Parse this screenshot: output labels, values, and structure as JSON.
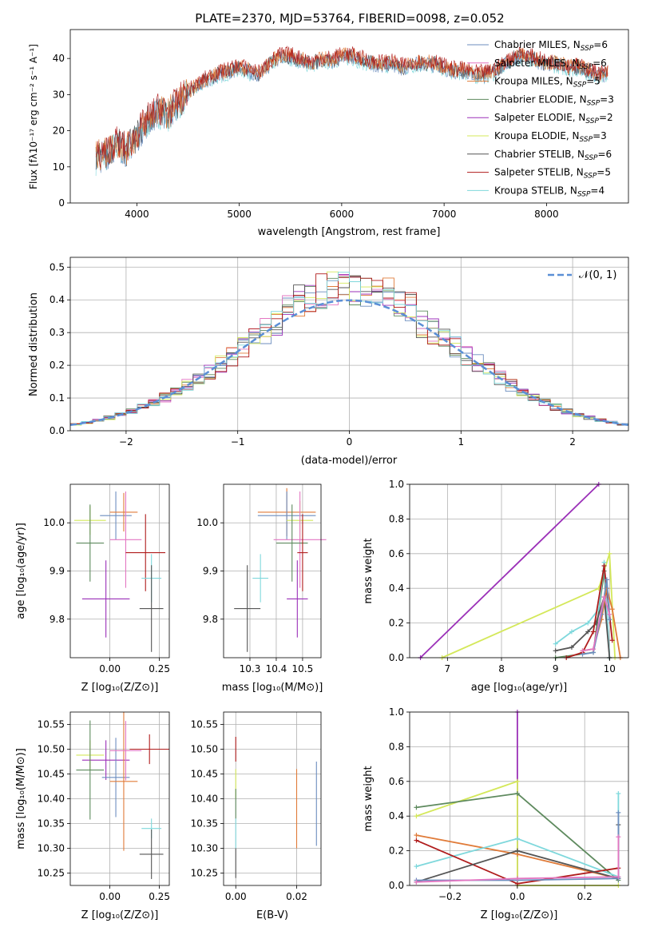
{
  "figure_title": "PLATE=2370, MJD=53764, FIBERID=0098, z=0.052",
  "colors": {
    "chabrier_miles": "#6c8ebf",
    "salpeter_miles": "#e377c2",
    "kroupa_miles": "#e07b39",
    "chabrier_elodie": "#5e8a5e",
    "salpeter_elodie": "#9b30b8",
    "kroupa_elodie": "#d4e85a",
    "chabrier_stelib": "#555555",
    "salpeter_stelib": "#b01c1c",
    "kroupa_stelib": "#7fd8dc",
    "normal_curve": "#5b8fd6"
  },
  "legend_models": [
    {
      "label": "Chabrier MILES, N",
      "sub": "SSP",
      "suffix": "=6",
      "key": "chabrier_miles"
    },
    {
      "label": "Salpeter MILES, N",
      "sub": "SSP",
      "suffix": "=6",
      "key": "salpeter_miles"
    },
    {
      "label": "Kroupa MILES, N",
      "sub": "SSP",
      "suffix": "=5",
      "key": "kroupa_miles"
    },
    {
      "label": "Chabrier ELODIE, N",
      "sub": "SSP",
      "suffix": "=3",
      "key": "chabrier_elodie"
    },
    {
      "label": "Salpeter ELODIE, N",
      "sub": "SSP",
      "suffix": "=2",
      "key": "salpeter_elodie"
    },
    {
      "label": "Kroupa ELODIE, N",
      "sub": "SSP",
      "suffix": "=3",
      "key": "kroupa_elodie"
    },
    {
      "label": "Chabrier STELIB, N",
      "sub": "SSP",
      "suffix": "=6",
      "key": "chabrier_stelib"
    },
    {
      "label": "Salpeter STELIB, N",
      "sub": "SSP",
      "suffix": "=5",
      "key": "salpeter_stelib"
    },
    {
      "label": "Kroupa STELIB, N",
      "sub": "SSP",
      "suffix": "=4",
      "key": "kroupa_stelib"
    }
  ],
  "chart_data": [
    {
      "id": "spectrum",
      "type": "line",
      "xlabel": "wavelength [Angstrom, rest frame]",
      "ylabel": "Flux [fλ10⁻¹⁷ erg cm⁻² s⁻¹ A⁻¹]",
      "xlim": [
        3350,
        8800
      ],
      "ylim": [
        0,
        48
      ],
      "xticks": [
        4000,
        5000,
        6000,
        7000,
        8000
      ],
      "yticks": [
        0,
        10,
        20,
        30,
        40
      ],
      "x": [
        3600,
        3700,
        3800,
        3900,
        4000,
        4100,
        4200,
        4300,
        4400,
        4500,
        4600,
        4700,
        4800,
        4900,
        5000,
        5100,
        5200,
        5300,
        5400,
        5500,
        5600,
        5700,
        5800,
        5900,
        6000,
        6100,
        6200,
        6300,
        6400,
        6500,
        6600,
        6700,
        6800,
        6900,
        7000,
        7100,
        7200,
        7300,
        7400,
        7500,
        7600,
        7700,
        7800,
        7900,
        8000,
        8100,
        8200,
        8300,
        8400,
        8500,
        8600
      ],
      "flux": [
        12,
        13,
        16,
        14,
        18,
        22,
        25,
        24,
        27,
        30,
        32,
        34,
        35,
        36,
        37,
        36,
        35,
        38,
        40,
        40,
        39,
        38,
        39,
        39,
        40,
        40,
        39,
        38,
        38,
        38,
        37,
        38,
        38,
        38,
        37,
        36,
        36,
        35,
        35,
        36,
        38,
        40,
        40,
        39,
        38,
        38,
        37,
        37,
        36,
        35,
        35
      ],
      "legend": "upper right"
    },
    {
      "id": "residuals",
      "type": "histogram",
      "xlabel": "(data-model)/error",
      "ylabel": "Normed distribution",
      "xlim": [
        -2.5,
        2.5
      ],
      "ylim": [
        0,
        0.53
      ],
      "xticks": [
        -2,
        -1,
        0,
        1,
        2
      ],
      "xtick_labels": [
        "−2",
        "−1",
        "0",
        "1",
        "2"
      ],
      "yticks": [
        0.0,
        0.1,
        0.2,
        0.3,
        0.4,
        0.5
      ],
      "ytick_labels": [
        "0.0",
        "0.1",
        "0.2",
        "0.3",
        "0.4",
        "0.5"
      ],
      "bin_width": 0.1,
      "bin_start": -2.5,
      "reference_label": "𝒩(0, 1)",
      "legend": "upper right",
      "grid": true
    },
    {
      "id": "age_vs_Z",
      "type": "scatter",
      "xlabel": "Z [log₁₀(Z/Z⊙)]",
      "ylabel": "age  [log₁₀(age/yr)]",
      "xlim": [
        -0.2,
        0.3
      ],
      "ylim": [
        9.72,
        10.08
      ],
      "xticks": [
        0.0,
        0.25
      ],
      "xtick_labels": [
        "0.00",
        "0.25"
      ],
      "yticks": [
        9.8,
        9.9,
        10.0
      ],
      "ytick_labels": [
        "9.8",
        "9.9",
        "10.0"
      ],
      "points": [
        {
          "key": "kroupa_elodie",
          "x": -0.1,
          "y": 10.005,
          "xerr": 0.08,
          "yerr": 0.03
        },
        {
          "key": "chabrier_elodie",
          "x": -0.1,
          "y": 9.958,
          "xerr": 0.07,
          "yerr": 0.08
        },
        {
          "key": "salpeter_elodie",
          "x": -0.02,
          "y": 9.842,
          "xerr": 0.12,
          "yerr": 0.08
        },
        {
          "key": "chabrier_miles",
          "x": 0.03,
          "y": 10.015,
          "xerr": 0.08,
          "yerr": 0.05
        },
        {
          "key": "kroupa_miles",
          "x": 0.07,
          "y": 10.022,
          "xerr": 0.07,
          "yerr": 0.04
        },
        {
          "key": "salpeter_miles",
          "x": 0.08,
          "y": 9.965,
          "xerr": 0.08,
          "yerr": 0.1
        },
        {
          "key": "salpeter_stelib",
          "x": 0.18,
          "y": 9.938,
          "xerr": 0.1,
          "yerr": 0.08
        },
        {
          "key": "kroupa_stelib",
          "x": 0.21,
          "y": 9.885,
          "xerr": 0.05,
          "yerr": 0.05
        },
        {
          "key": "chabrier_stelib",
          "x": 0.21,
          "y": 9.822,
          "xerr": 0.06,
          "yerr": 0.09
        }
      ]
    },
    {
      "id": "age_vs_mass",
      "type": "scatter",
      "xlabel": "mass [log₁₀(M/M⊙)]",
      "ylabel": "",
      "xlim": [
        10.2,
        10.57
      ],
      "ylim": [
        9.72,
        10.08
      ],
      "xticks": [
        10.3,
        10.4,
        10.5
      ],
      "xtick_labels": [
        "10.3",
        "10.4",
        "10.5"
      ],
      "yticks": [
        9.8,
        9.9,
        10.0
      ],
      "ytick_labels": [
        "9.8",
        "9.9",
        "10.0"
      ],
      "points": [
        {
          "key": "kroupa_miles",
          "x": 10.44,
          "y": 10.022,
          "xerr": 0.11,
          "yerr": 0.05
        },
        {
          "key": "chabrier_miles",
          "x": 10.44,
          "y": 10.015,
          "xerr": 0.11,
          "yerr": 0.05
        },
        {
          "key": "kroupa_elodie",
          "x": 10.49,
          "y": 10.005,
          "xerr": 0.05,
          "yerr": 0.04
        },
        {
          "key": "salpeter_miles",
          "x": 10.49,
          "y": 9.965,
          "xerr": 0.1,
          "yerr": 0.1
        },
        {
          "key": "chabrier_elodie",
          "x": 10.46,
          "y": 9.958,
          "xerr": 0.06,
          "yerr": 0.08
        },
        {
          "key": "salpeter_stelib",
          "x": 10.5,
          "y": 9.938,
          "xerr": 0.02,
          "yerr": 0.08
        },
        {
          "key": "kroupa_stelib",
          "x": 10.34,
          "y": 9.885,
          "xerr": 0.03,
          "yerr": 0.05
        },
        {
          "key": "salpeter_elodie",
          "x": 10.48,
          "y": 9.842,
          "xerr": 0.04,
          "yerr": 0.08
        },
        {
          "key": "chabrier_stelib",
          "x": 10.29,
          "y": 9.822,
          "xerr": 0.05,
          "yerr": 0.09
        }
      ]
    },
    {
      "id": "weight_vs_age",
      "type": "line",
      "xlabel": "age  [log₁₀(age/yr)]",
      "ylabel": "mass weight",
      "xlim": [
        6.3,
        10.35
      ],
      "ylim": [
        0,
        1
      ],
      "xticks": [
        7,
        8,
        9,
        10
      ],
      "xtick_labels": [
        "7",
        "8",
        "9",
        "10"
      ],
      "yticks": [
        0.0,
        0.2,
        0.4,
        0.6,
        0.8,
        1.0
      ],
      "ytick_labels": [
        "0.0",
        "0.2",
        "0.4",
        "0.6",
        "0.8",
        "1.0"
      ],
      "grid": true,
      "series": [
        {
          "key": "salpeter_elodie",
          "x": [
            6.5,
            9.8
          ],
          "y": [
            0.0,
            1.0
          ]
        },
        {
          "key": "kroupa_elodie",
          "x": [
            6.9,
            9.8,
            10.0,
            10.1
          ],
          "y": [
            0.0,
            0.4,
            0.6,
            0.0
          ]
        },
        {
          "key": "chabrier_elodie",
          "x": [
            9.0,
            9.7,
            9.9,
            10.0
          ],
          "y": [
            0.0,
            0.03,
            0.5,
            0.0
          ]
        },
        {
          "key": "kroupa_stelib",
          "x": [
            9.0,
            9.3,
            9.6,
            9.8,
            9.9,
            10.0
          ],
          "y": [
            0.08,
            0.15,
            0.2,
            0.28,
            0.55,
            0.0
          ]
        },
        {
          "key": "chabrier_stelib",
          "x": [
            9.0,
            9.3,
            9.6,
            9.75,
            9.9,
            10.0
          ],
          "y": [
            0.04,
            0.06,
            0.15,
            0.2,
            0.35,
            0.0
          ]
        },
        {
          "key": "salpeter_stelib",
          "x": [
            9.2,
            9.5,
            9.7,
            9.9,
            10.05
          ],
          "y": [
            0.0,
            0.03,
            0.15,
            0.53,
            0.1
          ]
        },
        {
          "key": "kroupa_miles",
          "x": [
            9.5,
            9.7,
            9.85,
            9.95,
            10.05,
            10.2
          ],
          "y": [
            0.04,
            0.05,
            0.22,
            0.4,
            0.28,
            0.0
          ]
        },
        {
          "key": "chabrier_miles",
          "x": [
            9.5,
            9.7,
            9.85,
            9.95,
            10.0
          ],
          "y": [
            0.02,
            0.03,
            0.25,
            0.45,
            0.22
          ]
        },
        {
          "key": "salpeter_miles",
          "x": [
            9.5,
            9.7,
            9.9,
            10.0
          ],
          "y": [
            0.04,
            0.05,
            0.35,
            0.25
          ]
        }
      ]
    },
    {
      "id": "mass_vs_Z",
      "type": "scatter",
      "xlabel": "Z [log₁₀(Z/Z⊙)]",
      "ylabel": "mass [log₁₀(M/M⊙)]",
      "xlim": [
        -0.2,
        0.3
      ],
      "ylim": [
        10.225,
        10.575
      ],
      "xticks": [
        0.0,
        0.25
      ],
      "xtick_labels": [
        "0.00",
        "0.25"
      ],
      "yticks": [
        10.25,
        10.3,
        10.35,
        10.4,
        10.45,
        10.5,
        10.55
      ],
      "ytick_labels": [
        "10.25",
        "10.30",
        "10.35",
        "10.40",
        "10.45",
        "10.50",
        "10.55"
      ],
      "points": [
        {
          "key": "kroupa_elodie",
          "x": -0.1,
          "y": 10.488,
          "xerr": 0.07,
          "yerr": 0.03
        },
        {
          "key": "salpeter_elodie",
          "x": -0.02,
          "y": 10.478,
          "xerr": 0.12,
          "yerr": 0.04
        },
        {
          "key": "chabrier_elodie",
          "x": -0.1,
          "y": 10.458,
          "xerr": 0.07,
          "yerr": 0.1
        },
        {
          "key": "chabrier_miles",
          "x": 0.03,
          "y": 10.443,
          "xerr": 0.07,
          "yerr": 0.08
        },
        {
          "key": "kroupa_miles",
          "x": 0.07,
          "y": 10.435,
          "xerr": 0.07,
          "yerr": 0.14
        },
        {
          "key": "salpeter_miles",
          "x": 0.08,
          "y": 10.497,
          "xerr": 0.08,
          "yerr": 0.06
        },
        {
          "key": "salpeter_stelib",
          "x": 0.2,
          "y": 10.5,
          "xerr": 0.1,
          "yerr": 0.03
        },
        {
          "key": "kroupa_stelib",
          "x": 0.21,
          "y": 10.34,
          "xerr": 0.05,
          "yerr": 0.02
        },
        {
          "key": "chabrier_stelib",
          "x": 0.21,
          "y": 10.288,
          "xerr": 0.06,
          "yerr": 0.05
        }
      ]
    },
    {
      "id": "mass_vs_ebv",
      "type": "scatter",
      "xlabel": "E(B-V)",
      "ylabel": "",
      "xlim": [
        -0.004,
        0.028
      ],
      "ylim": [
        10.225,
        10.575
      ],
      "xticks": [
        0.0,
        0.02
      ],
      "xtick_labels": [
        "0.00",
        "0.02"
      ],
      "yticks": [
        10.25,
        10.3,
        10.35,
        10.4,
        10.45,
        10.5,
        10.55
      ],
      "ytick_labels": [
        "10.25",
        "10.30",
        "10.35",
        "10.40",
        "10.45",
        "10.50",
        "10.55"
      ],
      "points": [
        {
          "key": "salpeter_stelib",
          "x": 0.0,
          "y": 10.5,
          "xerr": 0.0,
          "yerr": 0.025
        },
        {
          "key": "kroupa_elodie",
          "x": 0.0,
          "y": 10.43,
          "xerr": 0.0,
          "yerr": 0.03
        },
        {
          "key": "chabrier_elodie",
          "x": 0.0,
          "y": 10.39,
          "xerr": 0.0,
          "yerr": 0.03
        },
        {
          "key": "kroupa_stelib",
          "x": 0.0,
          "y": 10.33,
          "xerr": 0.0,
          "yerr": 0.03
        },
        {
          "key": "chabrier_stelib",
          "x": 0.0,
          "y": 10.27,
          "xerr": 0.0,
          "yerr": 0.03
        },
        {
          "key": "kroupa_miles",
          "x": 0.02,
          "y": 10.38,
          "xerr": 0.0,
          "yerr": 0.08
        },
        {
          "key": "chabrier_miles",
          "x": 0.0265,
          "y": 10.39,
          "xerr": 0.0,
          "yerr": 0.085
        }
      ]
    },
    {
      "id": "weight_vs_Z",
      "type": "line",
      "xlabel": "Z [log₁₀(Z/Z⊙)]",
      "ylabel": "mass weight",
      "xlim": [
        -0.32,
        0.33
      ],
      "ylim": [
        0,
        1
      ],
      "xticks": [
        -0.2,
        0.0,
        0.2
      ],
      "xtick_labels": [
        "−0.2",
        "0.0",
        "0.2"
      ],
      "yticks": [
        0.0,
        0.2,
        0.4,
        0.6,
        0.8,
        1.0
      ],
      "ytick_labels": [
        "0.0",
        "0.2",
        "0.4",
        "0.6",
        "0.8",
        "1.0"
      ],
      "grid": true,
      "series": [
        {
          "key": "salpeter_elodie",
          "x": [
            0.0,
            0.0
          ],
          "y": [
            0.0,
            1.0
          ]
        },
        {
          "key": "kroupa_elodie",
          "x": [
            -0.3,
            0.0,
            0.0,
            0.3
          ],
          "y": [
            0.4,
            0.6,
            0.0,
            0.0
          ]
        },
        {
          "key": "chabrier_elodie",
          "x": [
            -0.3,
            0.0,
            0.3
          ],
          "y": [
            0.45,
            0.53,
            0.03
          ]
        },
        {
          "key": "kroupa_miles",
          "x": [
            -0.3,
            0.0,
            0.3
          ],
          "y": [
            0.29,
            0.18,
            0.04
          ]
        },
        {
          "key": "kroupa_stelib",
          "x": [
            -0.3,
            0.0,
            0.3,
            0.3
          ],
          "y": [
            0.11,
            0.27,
            0.05,
            0.53
          ]
        },
        {
          "key": "salpeter_stelib",
          "x": [
            -0.3,
            0.0,
            0.3
          ],
          "y": [
            0.26,
            0.01,
            0.1
          ]
        },
        {
          "key": "chabrier_stelib",
          "x": [
            -0.3,
            0.0,
            0.3,
            0.3
          ],
          "y": [
            0.02,
            0.2,
            0.04,
            0.35
          ]
        },
        {
          "key": "chabrier_miles",
          "x": [
            -0.3,
            0.0,
            0.3,
            0.3
          ],
          "y": [
            0.03,
            0.03,
            0.04,
            0.42
          ]
        },
        {
          "key": "salpeter_miles",
          "x": [
            -0.3,
            0.0,
            0.3,
            0.3
          ],
          "y": [
            0.02,
            0.04,
            0.05,
            0.28
          ]
        }
      ]
    }
  ]
}
